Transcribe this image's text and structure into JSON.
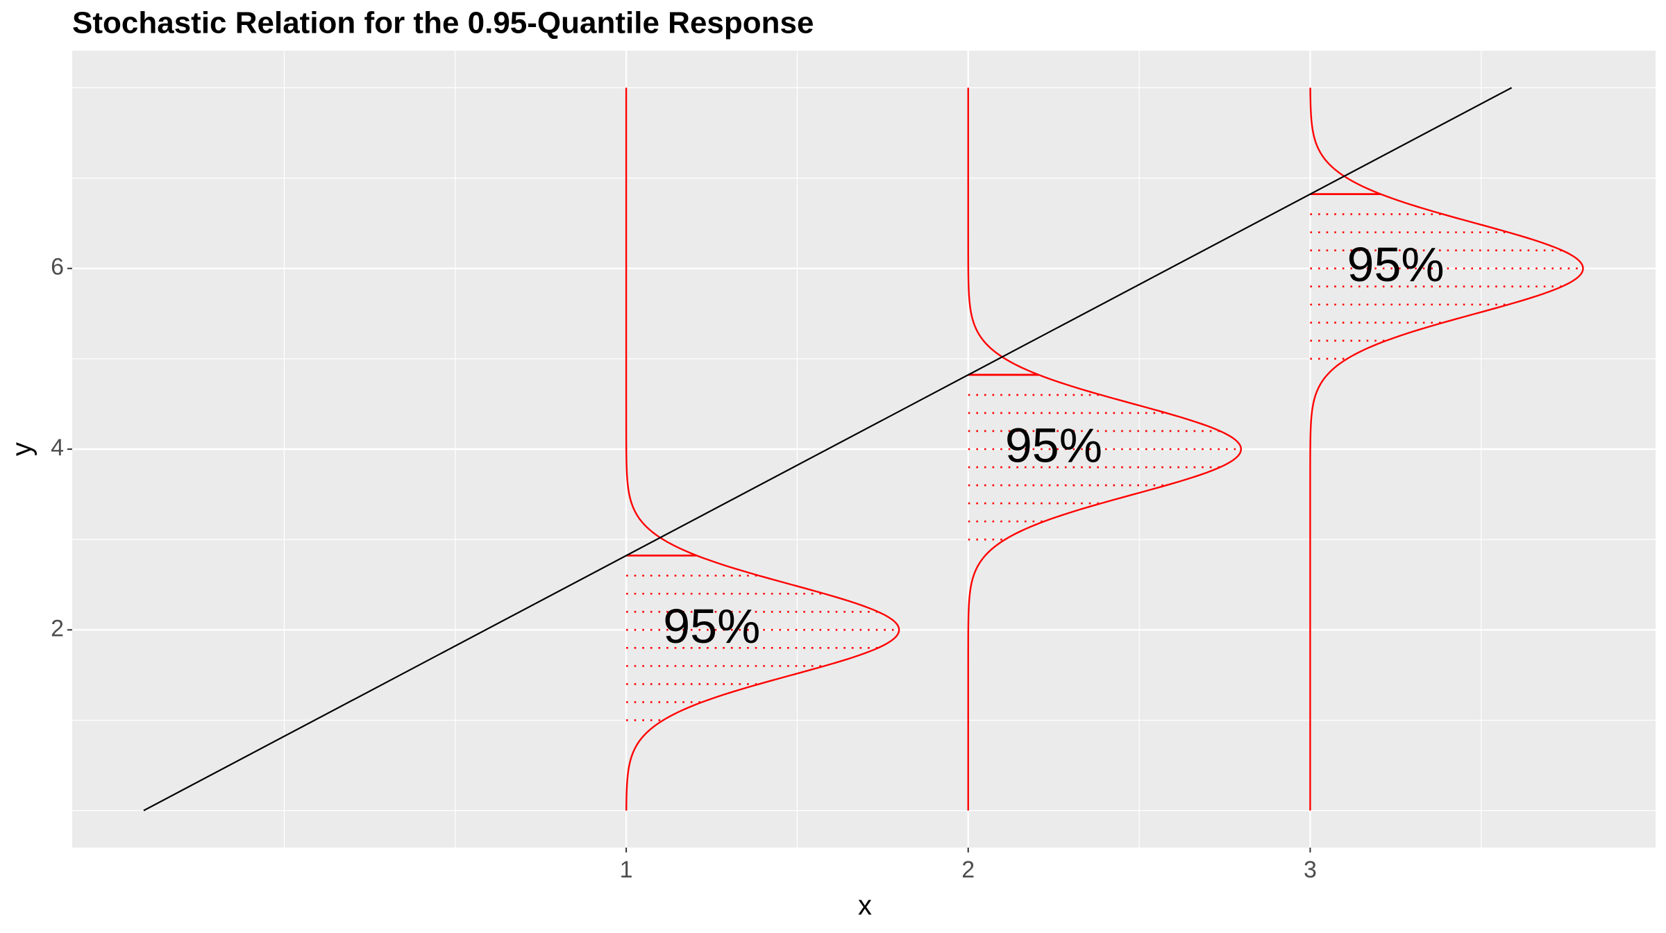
{
  "chart_data": {
    "type": "quantile-density",
    "title": "Stochastic Relation for the 0.95-Quantile Response",
    "x_label": "x",
    "y_label": "y",
    "xlim": [
      -0.62,
      4.01
    ],
    "ylim": [
      -0.41,
      8.41
    ],
    "xticks": [
      1,
      2,
      3
    ],
    "yticks": [
      2,
      4,
      6
    ],
    "x_minor_ticks": [
      0,
      0.5,
      1.5,
      2.5,
      3.5
    ],
    "y_minor_ticks": [
      0,
      1,
      3,
      5,
      7,
      8
    ],
    "grid": true,
    "quantile": 0.95,
    "quantile_line": {
      "x": [
        -0.411,
        3.589
      ],
      "y": [
        0,
        8
      ],
      "color": "#000000"
    },
    "density_color": "#ff0000",
    "density_yrange": [
      0,
      8
    ],
    "distributions": [
      {
        "x": 1,
        "mean": 2,
        "sd": 0.5,
        "label": "95%",
        "hatch_y": [
          1.0,
          1.2,
          1.4,
          1.6,
          1.8,
          2.0,
          2.2,
          2.4,
          2.6
        ]
      },
      {
        "x": 2,
        "mean": 4,
        "sd": 0.5,
        "label": "95%",
        "hatch_y": [
          3.0,
          3.2,
          3.4,
          3.6,
          3.8,
          4.0,
          4.2,
          4.4,
          4.6
        ]
      },
      {
        "x": 3,
        "mean": 6,
        "sd": 0.5,
        "label": "95%",
        "hatch_y": [
          5.0,
          5.2,
          5.4,
          5.6,
          5.8,
          6.0,
          6.2,
          6.4,
          6.6
        ]
      }
    ]
  }
}
